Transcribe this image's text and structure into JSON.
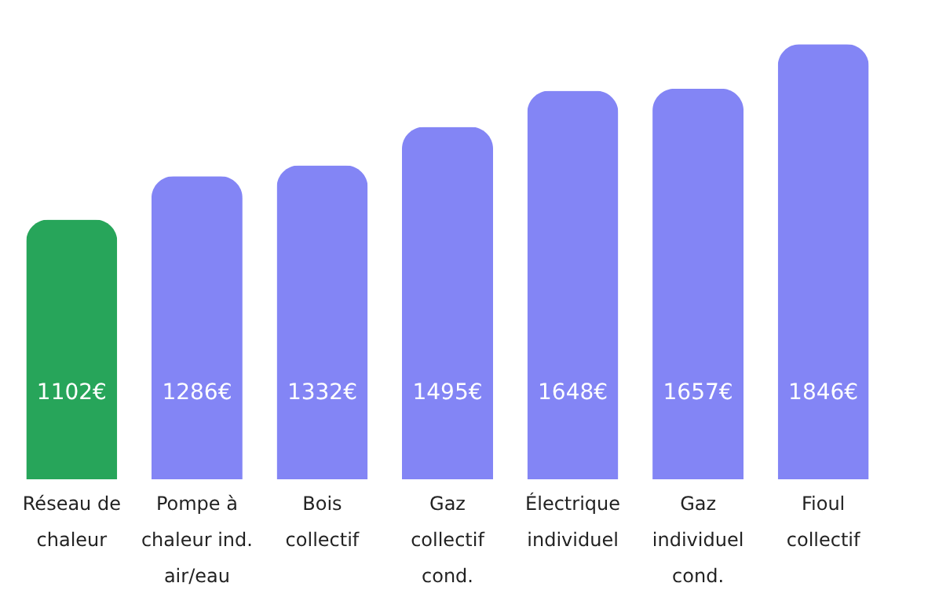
{
  "chart_data": {
    "type": "bar",
    "categories": [
      "Réseau de chaleur",
      "Pompe à chaleur ind. air/eau",
      "Bois collectif",
      "Gaz collectif cond.",
      "Électrique individuel",
      "Gaz individuel cond.",
      "Fioul collectif"
    ],
    "values": [
      1102,
      1286,
      1332,
      1495,
      1648,
      1657,
      1846
    ],
    "colors": [
      "#27a55a",
      "#8385f5",
      "#8385f5",
      "#8385f5",
      "#8385f5",
      "#8385f5",
      "#8385f5"
    ],
    "value_labels": [
      "1102€",
      "1286€",
      "1332€",
      "1495€",
      "1648€",
      "1657€",
      "1846€"
    ],
    "grid": false
  }
}
